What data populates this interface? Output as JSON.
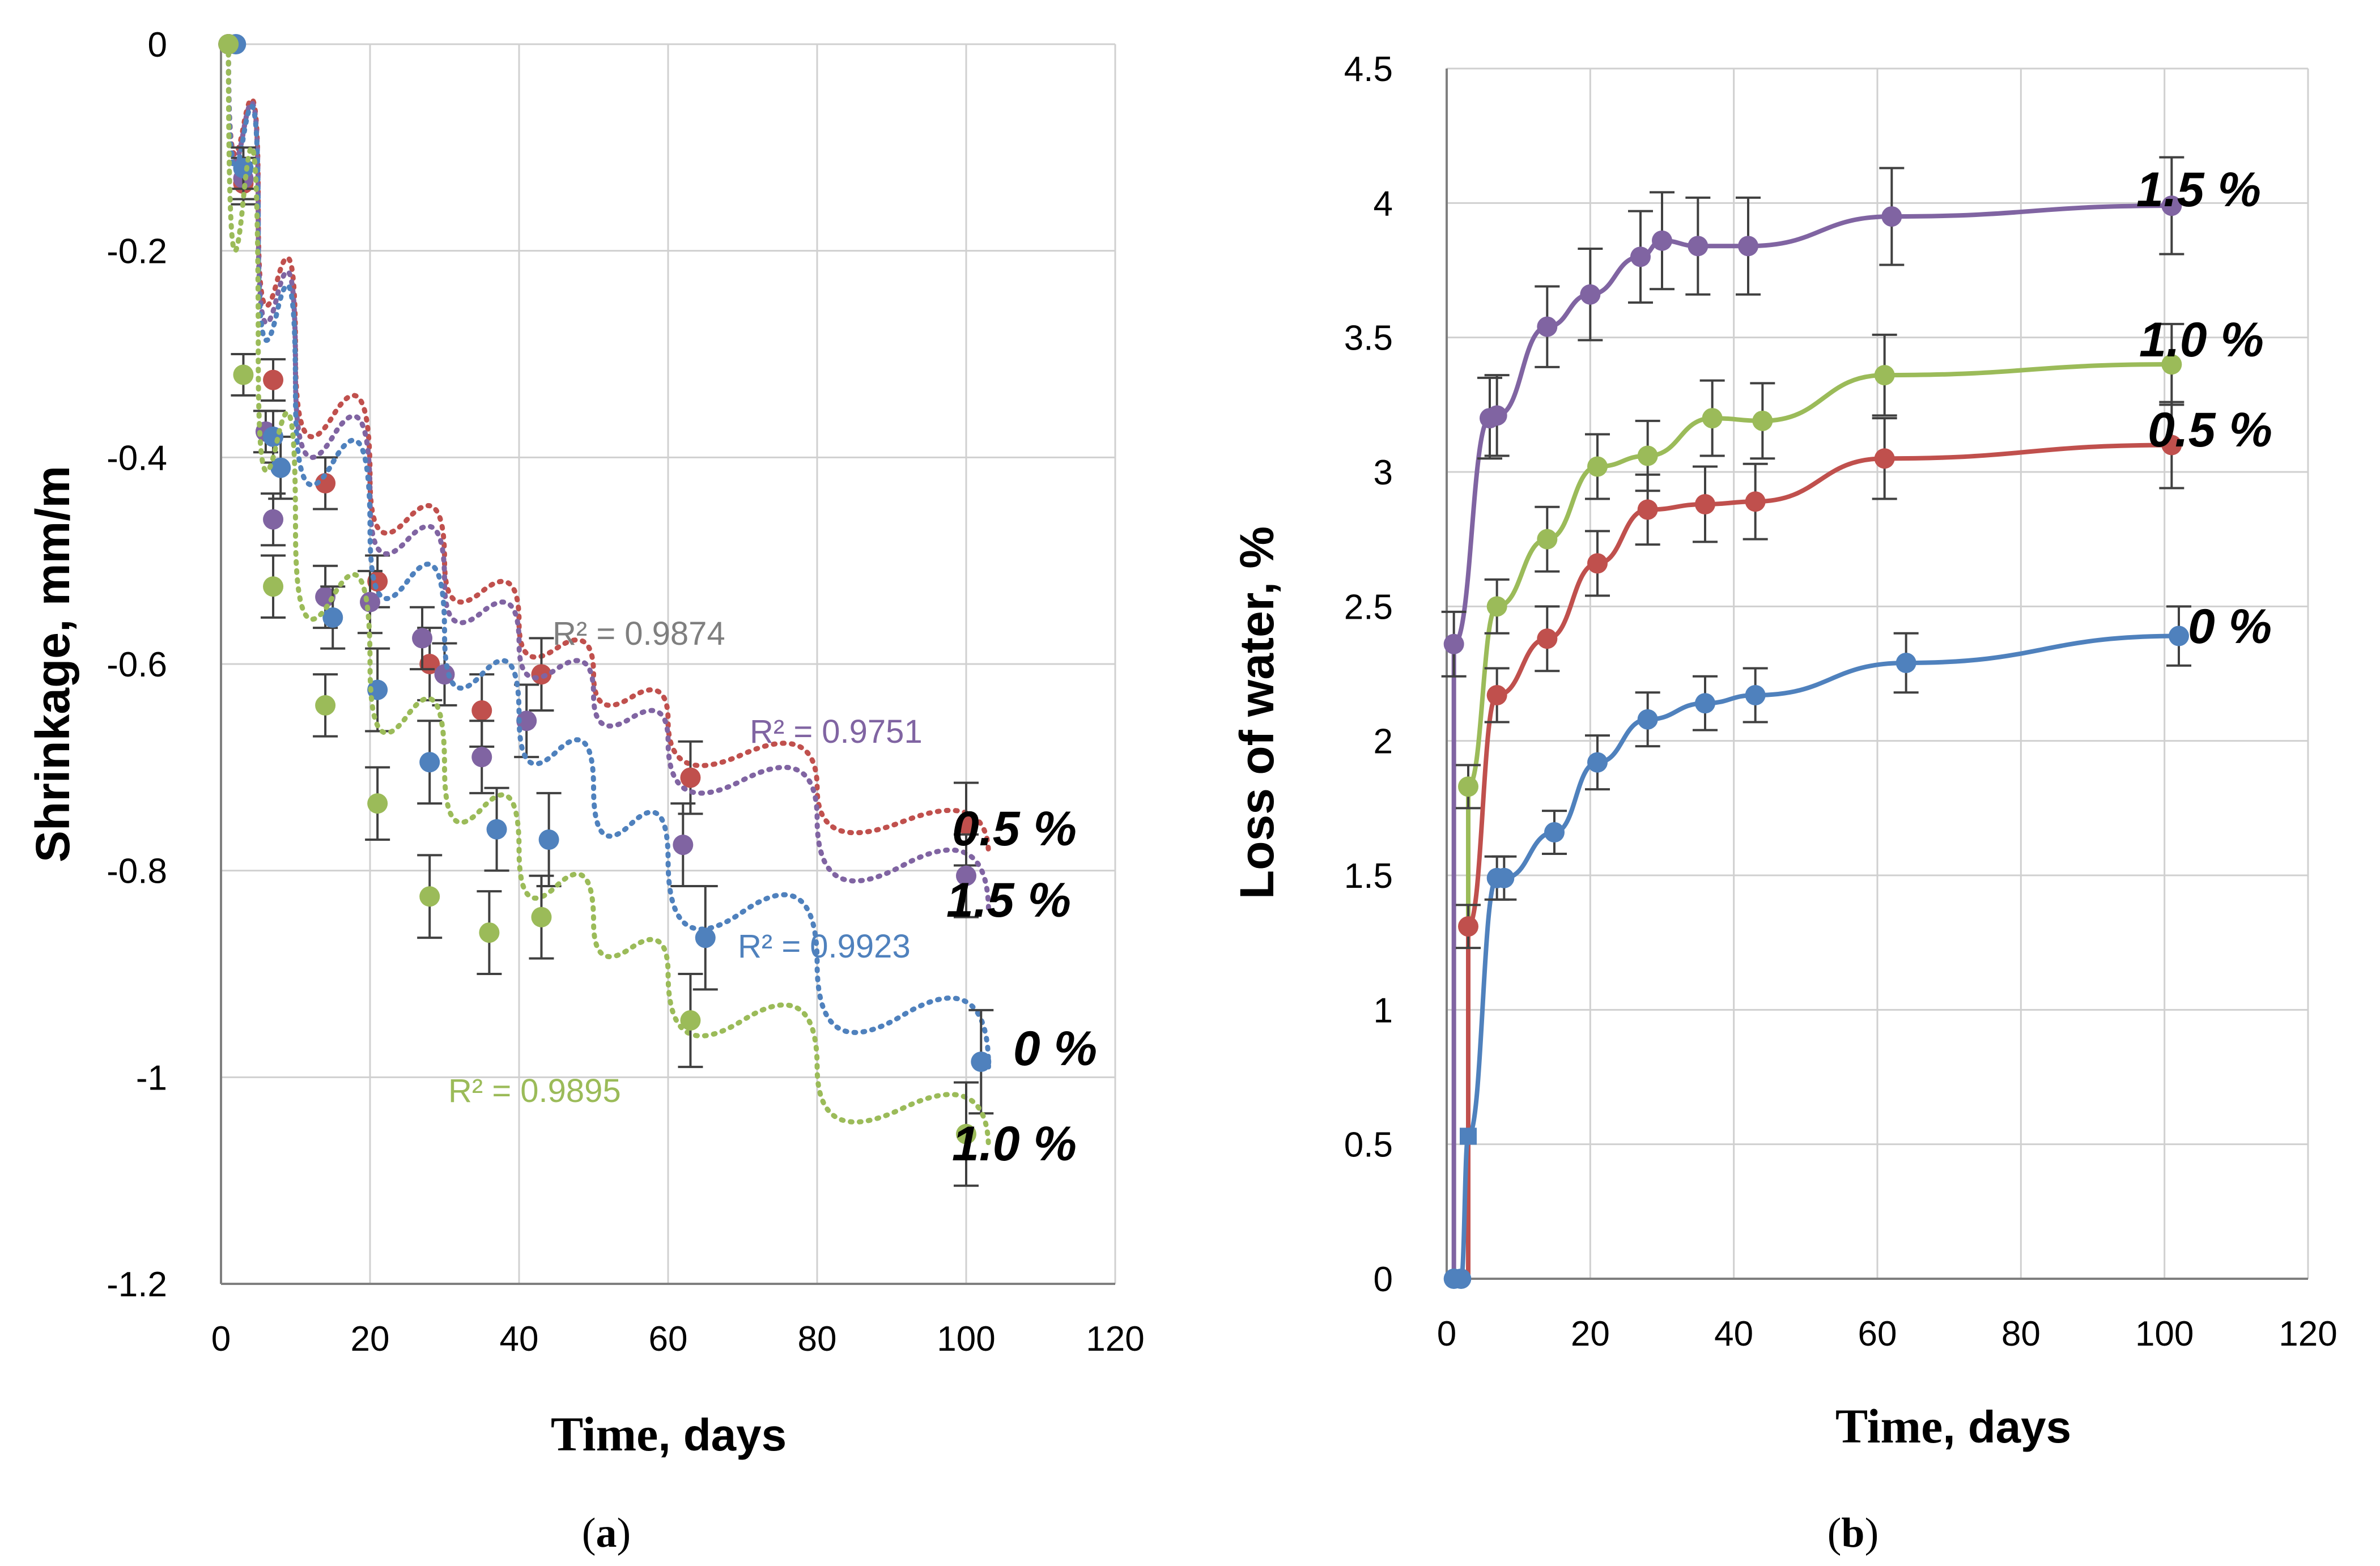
{
  "chart_data": [
    {
      "type": "scatter",
      "panel_caption_open": "(",
      "panel_caption_letter": "a",
      "panel_caption_close": ")",
      "title": "",
      "xlabel_word": "Time",
      "xlabel_rest": ", days",
      "ylabel": "Shrinkage, mm/m",
      "xlim": [
        0,
        120
      ],
      "ylim": [
        -1.2,
        0
      ],
      "x_ticks": [
        "0",
        "20",
        "40",
        "60",
        "80",
        "100",
        "120"
      ],
      "y_ticks": [
        "0",
        "-0.2",
        "-0.4",
        "-0.6",
        "-0.8",
        "-1",
        "-1.2"
      ],
      "grid": true,
      "trendline": "dotted",
      "series": [
        {
          "name": "0.5 %",
          "color": "#c0504d",
          "x": [
            1,
            3,
            7,
            14,
            21,
            28,
            35,
            43,
            63,
            100
          ],
          "values": [
            0,
            -0.135,
            -0.325,
            -0.425,
            -0.52,
            -0.6,
            -0.645,
            -0.61,
            -0.71,
            -0.755
          ],
          "errors": [
            0,
            0.02,
            0.02,
            0.025,
            0.025,
            0.035,
            0.035,
            0.035,
            0.035,
            0.04
          ],
          "fit": [
            0,
            -0.16,
            -0.3,
            -0.42,
            -0.5,
            -0.56,
            -0.61,
            -0.655,
            -0.72,
            -0.785
          ],
          "r2_label": "R² = 0.9874",
          "r2_color": "#7f7f7f"
        },
        {
          "name": "1.5 %",
          "color": "#8064a2",
          "x": [
            1,
            3,
            6,
            7,
            14,
            20,
            27,
            30,
            35,
            41,
            62,
            100
          ],
          "values": [
            0,
            -0.13,
            -0.375,
            -0.46,
            -0.535,
            -0.54,
            -0.575,
            -0.61,
            -0.69,
            -0.655,
            -0.775,
            -0.805
          ],
          "errors": [
            0,
            0.02,
            0.02,
            0.025,
            0.03,
            0.03,
            0.03,
            0.03,
            0.035,
            0.035,
            0.04,
            0.04
          ],
          "fit": [
            0,
            -0.17,
            -0.32,
            -0.44,
            -0.52,
            -0.58,
            -0.63,
            -0.675,
            -0.75,
            -0.84
          ],
          "r2_label": "R² = 0.9751",
          "r2_color": "#8064a2"
        },
        {
          "name": "0 %",
          "color": "#4f81bd",
          "x": [
            2,
            3,
            7,
            8,
            15,
            21,
            28,
            37,
            44,
            65,
            102
          ],
          "values": [
            0,
            -0.12,
            -0.38,
            -0.41,
            -0.555,
            -0.625,
            -0.695,
            -0.76,
            -0.77,
            -0.865,
            -0.985
          ],
          "errors": [
            0,
            0.02,
            0.025,
            0.03,
            0.03,
            0.04,
            0.04,
            0.04,
            0.045,
            0.05,
            0.05
          ],
          "fit": [
            0,
            -0.18,
            -0.34,
            -0.47,
            -0.57,
            -0.65,
            -0.72,
            -0.79,
            -0.89,
            -0.99
          ],
          "r2_label": "R² = 0.9923",
          "r2_color": "#4f81bd"
        },
        {
          "name": "1.0 %",
          "color": "#9bbb59",
          "x": [
            1,
            3,
            7,
            14,
            21,
            28,
            36,
            43,
            63,
            100
          ],
          "values": [
            0,
            -0.32,
            -0.525,
            -0.64,
            -0.735,
            -0.825,
            -0.86,
            -0.845,
            -0.945,
            -1.055
          ],
          "errors": [
            0,
            0.02,
            0.03,
            0.03,
            0.035,
            0.04,
            0.04,
            0.04,
            0.045,
            0.05
          ],
          "fit": [
            0,
            -0.3,
            -0.47,
            -0.6,
            -0.7,
            -0.78,
            -0.85,
            -0.9,
            -0.99,
            -1.07
          ],
          "r2_label": "R² = 0.9895",
          "r2_color": "#9bbb59"
        }
      ]
    },
    {
      "type": "line",
      "panel_caption_open": "(",
      "panel_caption_letter": "b",
      "panel_caption_close": ")",
      "title": "",
      "xlabel_word": "Time",
      "xlabel_rest": ", days",
      "ylabel": "Loss of water, %",
      "xlim": [
        0,
        120
      ],
      "ylim": [
        0,
        4.5
      ],
      "x_ticks": [
        "0",
        "20",
        "40",
        "60",
        "80",
        "100",
        "120"
      ],
      "y_ticks": [
        "0",
        "0.5",
        "1",
        "1.5",
        "2",
        "2.5",
        "3",
        "3.5",
        "4",
        "4.5"
      ],
      "grid": true,
      "series": [
        {
          "name": "1.5 %",
          "color": "#8064a2",
          "x": [
            1,
            6,
            7,
            14,
            20,
            27,
            30,
            35,
            42,
            62,
            101
          ],
          "values": [
            2.36,
            3.2,
            3.21,
            3.54,
            3.66,
            3.8,
            3.86,
            3.84,
            3.84,
            3.95,
            3.99
          ],
          "errors": [
            0.12,
            0.15,
            0.15,
            0.15,
            0.17,
            0.17,
            0.18,
            0.18,
            0.18,
            0.18,
            0.18
          ]
        },
        {
          "name": "1.0 %",
          "color": "#9bbb59",
          "x": [
            3,
            7,
            14,
            21,
            28,
            37,
            44,
            61,
            101
          ],
          "values": [
            1.83,
            2.5,
            2.75,
            3.02,
            3.06,
            3.2,
            3.19,
            3.36,
            3.4
          ],
          "errors": [
            0.08,
            0.1,
            0.12,
            0.12,
            0.13,
            0.14,
            0.14,
            0.15,
            0.15
          ]
        },
        {
          "name": "0.5 %",
          "color": "#c0504d",
          "x": [
            3,
            7,
            14,
            21,
            28,
            36,
            43,
            61,
            101
          ],
          "values": [
            1.31,
            2.17,
            2.38,
            2.66,
            2.86,
            2.88,
            2.89,
            3.05,
            3.1
          ],
          "errors": [
            0.08,
            0.1,
            0.12,
            0.12,
            0.13,
            0.14,
            0.14,
            0.15,
            0.16
          ]
        },
        {
          "name": "0 %",
          "color": "#4f81bd",
          "x": [
            1,
            2,
            3,
            7,
            8,
            15,
            21,
            28,
            36,
            43,
            64,
            102
          ],
          "values": [
            0,
            0,
            0.53,
            1.49,
            1.49,
            1.66,
            1.92,
            2.08,
            2.14,
            2.17,
            2.29,
            2.39
          ],
          "errors": [
            0,
            0,
            0,
            0.08,
            0.08,
            0.08,
            0.1,
            0.1,
            0.1,
            0.1,
            0.11,
            0.11
          ]
        }
      ]
    }
  ]
}
